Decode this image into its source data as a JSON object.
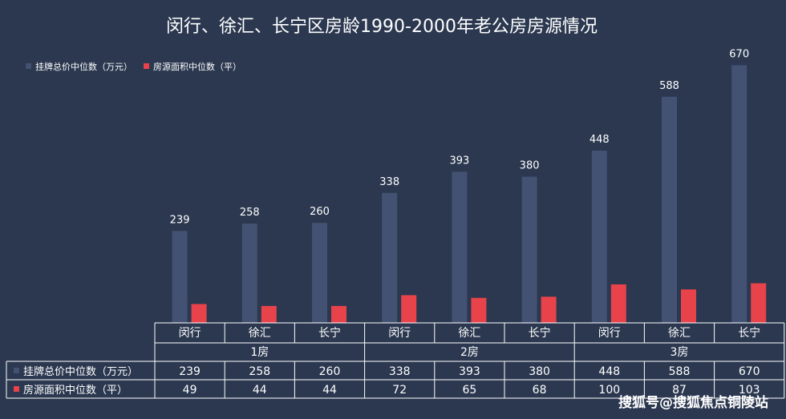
{
  "colors": {
    "background": "#2b3850",
    "series_price": "#435272",
    "series_area": "#e8434a",
    "text": "#ffffff",
    "grid": "#ffffff"
  },
  "chart_data": {
    "type": "bar",
    "title": "闵行、徐汇、长宁区房龄1990-2000年老公房房源情况",
    "groups": [
      "1房",
      "2房",
      "3房"
    ],
    "categories": [
      "闵行",
      "徐汇",
      "长宁",
      "闵行",
      "徐汇",
      "长宁",
      "闵行",
      "徐汇",
      "长宁"
    ],
    "series": [
      {
        "name": "挂牌总价中位数（万元）",
        "values": [
          239,
          258,
          260,
          338,
          393,
          380,
          448,
          588,
          670
        ]
      },
      {
        "name": "房源面积中位数（平）",
        "values": [
          49,
          44,
          44,
          72,
          65,
          68,
          100,
          87,
          103
        ]
      }
    ],
    "legend_position": "top-left",
    "data_table": true
  },
  "watermark": "搜狐号@搜狐焦点铜陵站"
}
